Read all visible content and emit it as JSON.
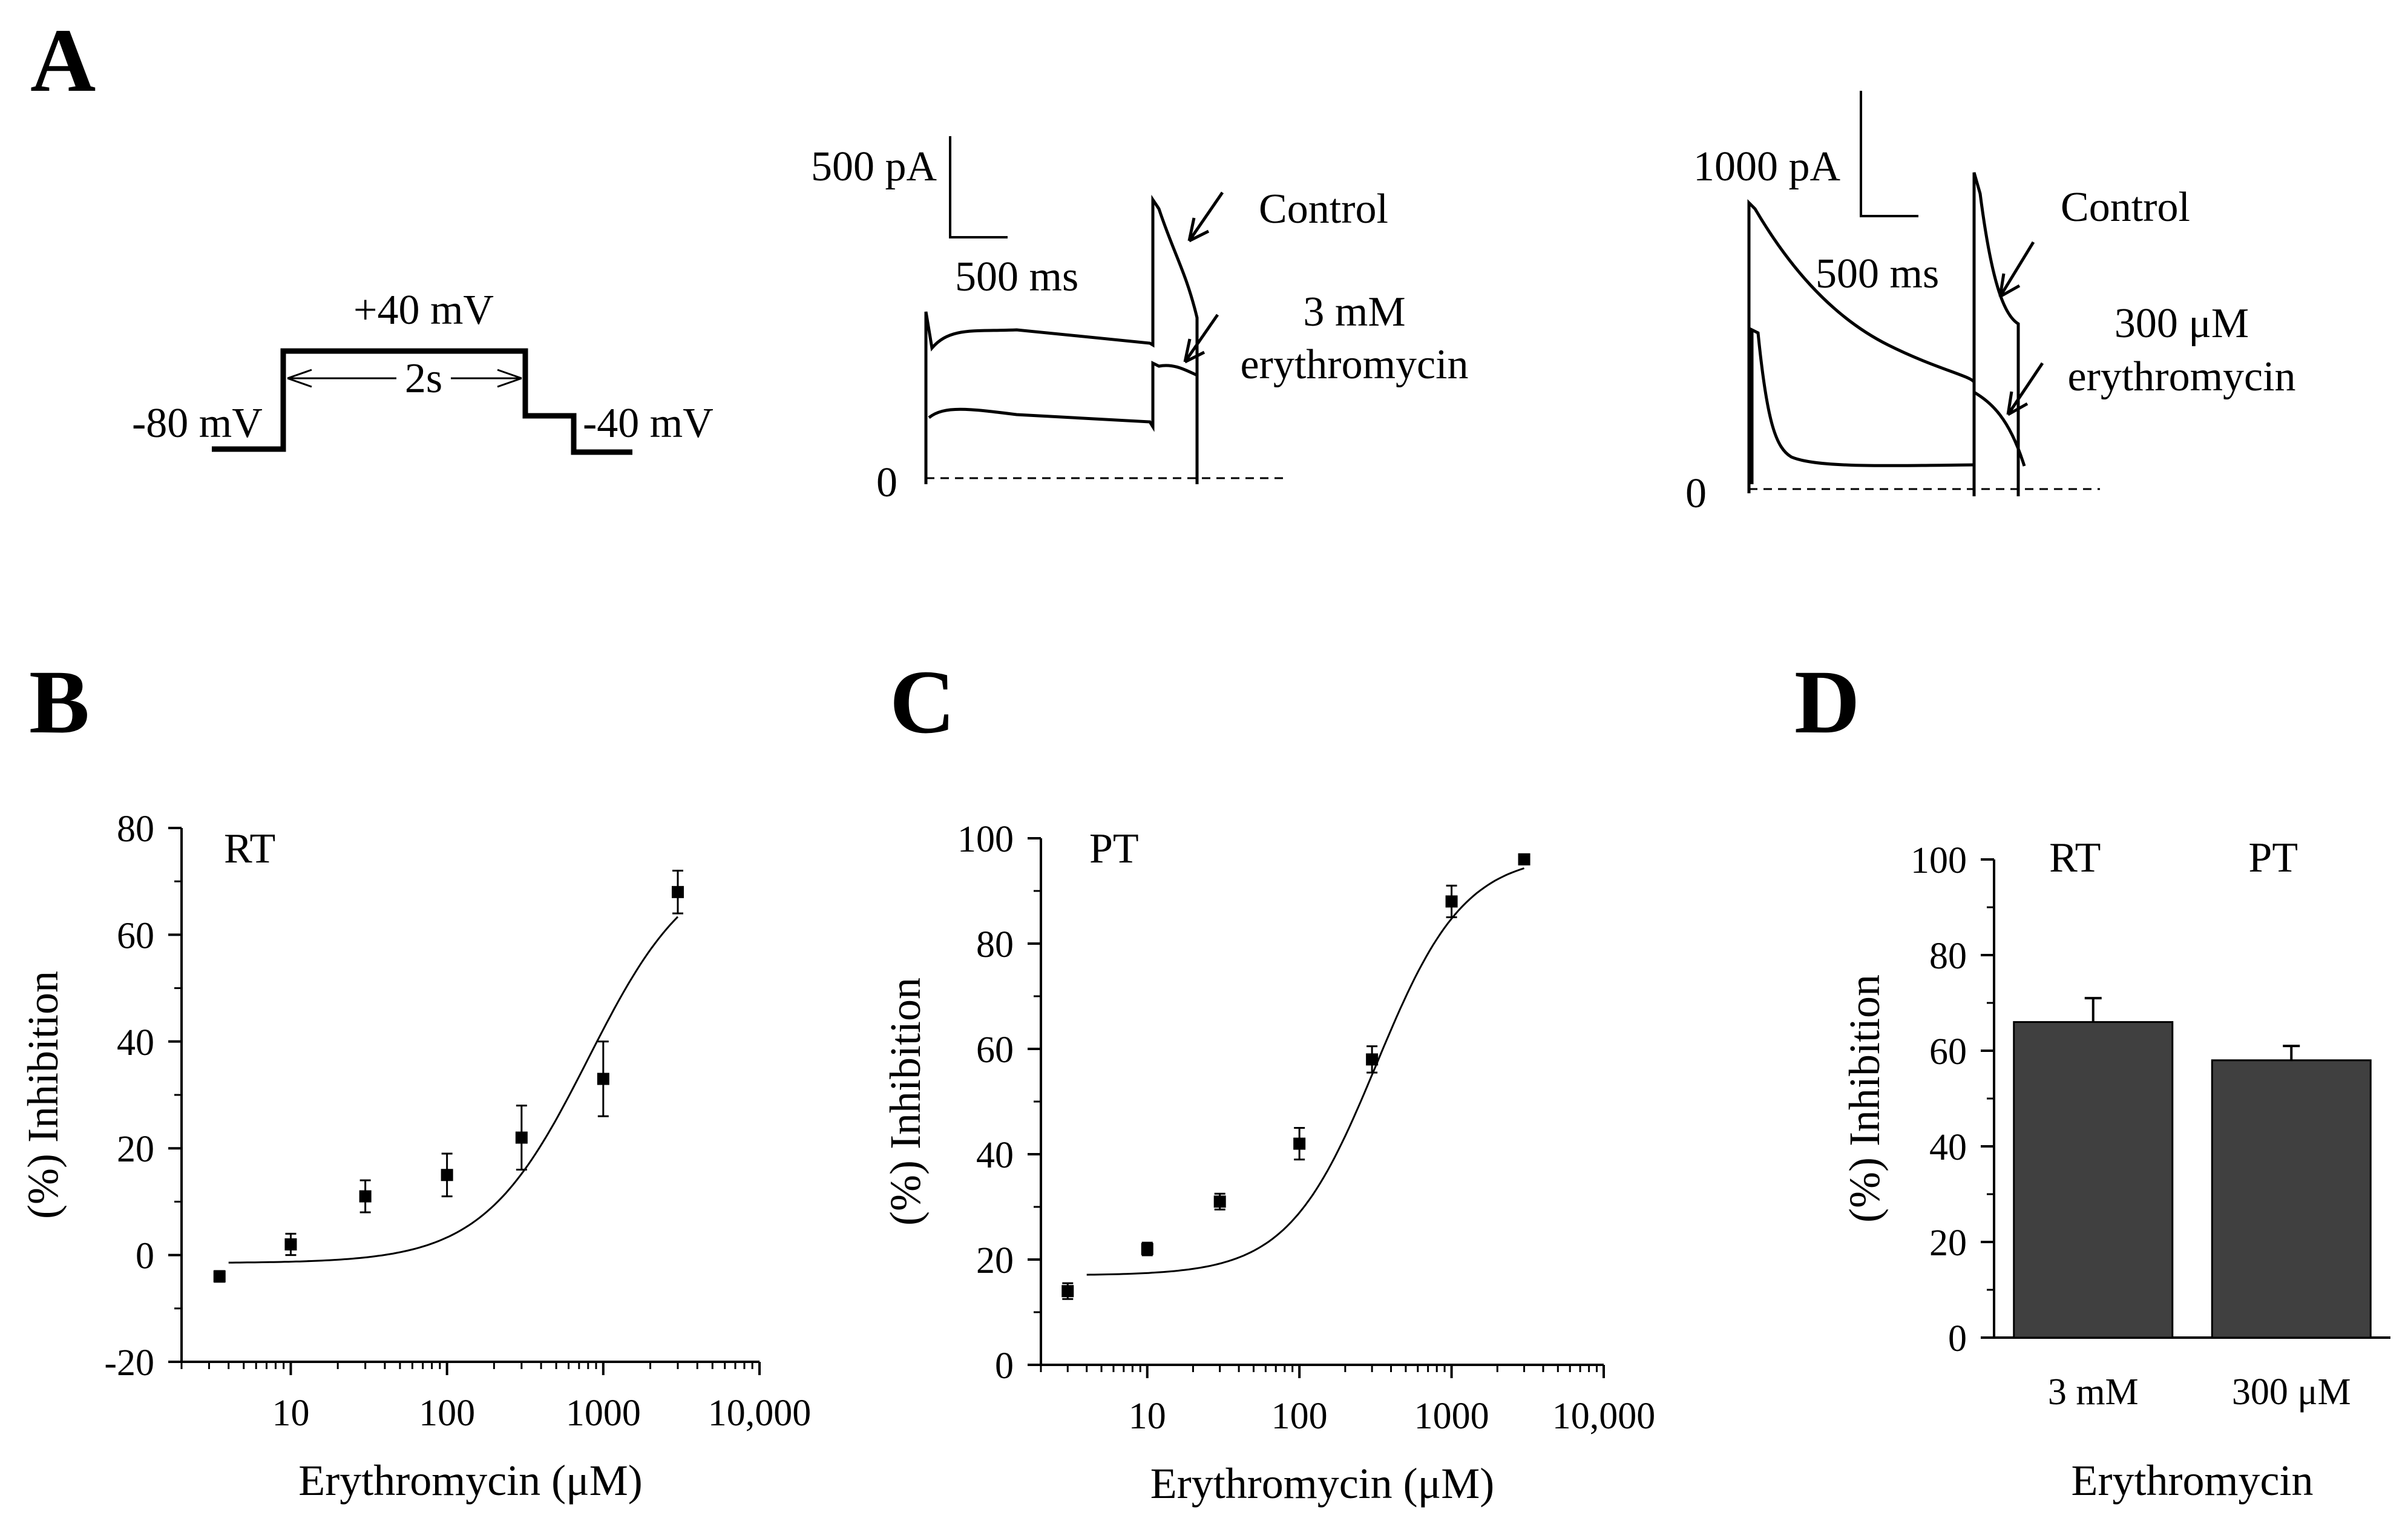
{
  "panels": {
    "A": {
      "letter": "A",
      "protocol": {
        "step_label": "+40 mV",
        "duration_label": "2s",
        "holding_label": "-80 mV",
        "tail_label": "-40 mV"
      },
      "trace_rt": {
        "scale_current": "500 pA",
        "scale_time": "500 ms",
        "control_label": "Control",
        "drug_label_line1": "3 mM",
        "drug_label_line2": "erythromycin",
        "zero_label": "0"
      },
      "trace_pt": {
        "scale_current": "1000 pA",
        "scale_time": "500 ms",
        "control_label": "Control",
        "drug_label_line1": "300 μM",
        "drug_label_line2": "erythromycin",
        "zero_label": "0"
      }
    },
    "B": {
      "letter": "B"
    },
    "C": {
      "letter": "C"
    },
    "D": {
      "letter": "D"
    }
  },
  "chart_data": [
    {
      "id": "B",
      "type": "scatter",
      "title": "RT",
      "xlabel": "Erythromycin (μM)",
      "ylabel": "(%) Inhibition",
      "xscale": "log",
      "xlim": [
        2,
        10000
      ],
      "ylim": [
        -20,
        80
      ],
      "yticks": [
        -20,
        0,
        20,
        40,
        60,
        80
      ],
      "xticks": [
        10,
        100,
        1000,
        10000
      ],
      "xtick_labels": [
        "10",
        "100",
        "1000",
        "10,000"
      ],
      "x": [
        3.5,
        10,
        30,
        100,
        300,
        1000,
        3000
      ],
      "y": [
        -4,
        2,
        11,
        15,
        22,
        33,
        68
      ],
      "yerr": [
        1,
        2,
        3,
        4,
        6,
        7,
        4
      ],
      "fit": {
        "bottom": -1.5,
        "top": 75,
        "ic50": 800,
        "hill": 1.3
      }
    },
    {
      "id": "C",
      "type": "scatter",
      "title": "PT",
      "xlabel": "Erythromycin (μM)",
      "ylabel": "(%) Inhibition",
      "xscale": "log",
      "xlim": [
        2,
        10000
      ],
      "ylim": [
        0,
        100
      ],
      "yticks": [
        0,
        20,
        40,
        60,
        80,
        100
      ],
      "xticks": [
        10,
        100,
        1000,
        10000
      ],
      "xtick_labels": [
        "10",
        "100",
        "1000",
        "10,000"
      ],
      "x": [
        3,
        10,
        30,
        100,
        300,
        1000,
        3000
      ],
      "y": [
        14,
        22,
        31,
        42,
        58,
        88,
        96
      ],
      "yerr": [
        1.5,
        1.2,
        1.5,
        3,
        2.5,
        3,
        0.8
      ],
      "fit": {
        "bottom": 17,
        "top": 97,
        "ic50": 320,
        "hill": 1.5
      }
    },
    {
      "id": "D",
      "type": "bar",
      "xlabel": "Erythromycin",
      "ylabel": "(%) Inhibition",
      "ylim": [
        0,
        100
      ],
      "yticks": [
        0,
        20,
        40,
        60,
        80,
        100
      ],
      "categories": [
        "3 mM",
        "300 μM"
      ],
      "group_labels": [
        "RT",
        "PT"
      ],
      "values": [
        66,
        58
      ],
      "errors": [
        5,
        3
      ],
      "bar_color": "#404040"
    }
  ]
}
